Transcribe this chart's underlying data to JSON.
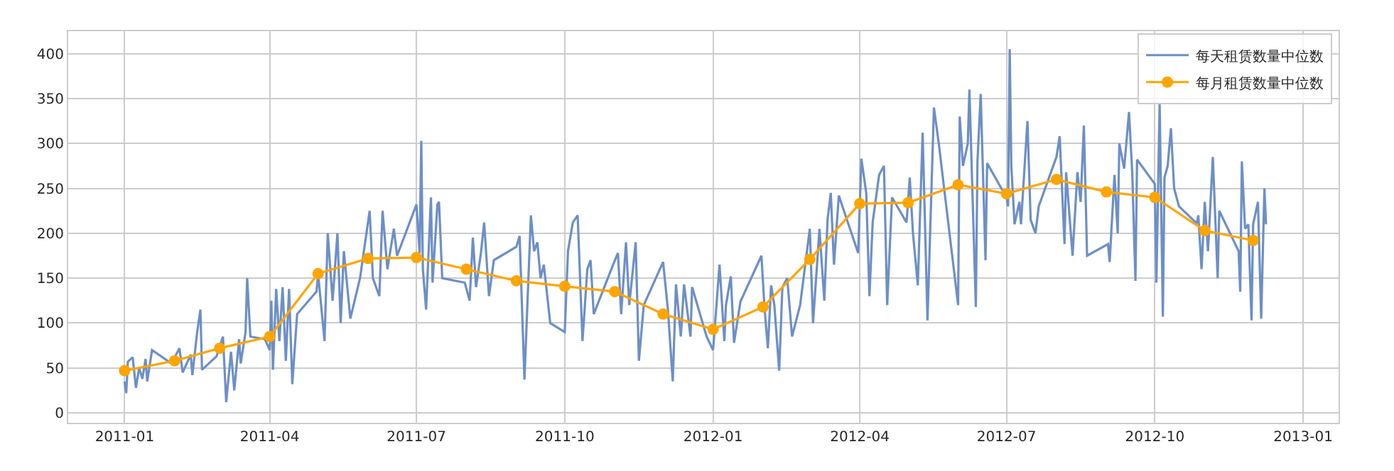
{
  "chart_data": {
    "type": "line",
    "legend": "top right",
    "grid": true,
    "line_style": "solid",
    "xlim": [
      "2010-11-27",
      "2013-01-23"
    ],
    "xticks": [
      "2011-01",
      "2011-04",
      "2011-07",
      "2011-10",
      "2012-01",
      "2012-04",
      "2012-07",
      "2012-10",
      "2013-01"
    ],
    "ylim": [
      -11,
      425
    ],
    "yticks": [
      0,
      50,
      100,
      150,
      200,
      250,
      300,
      350,
      400
    ],
    "series": [
      {
        "name": "每天租赁数量中位数",
        "color": "#6d8fc6",
        "marker": "none",
        "x": [
          "2011-01-01",
          "2011-01-02",
          "2011-01-03",
          "2011-01-06",
          "2011-01-08",
          "2011-01-10",
          "2011-01-12",
          "2011-01-14",
          "2011-01-15",
          "2011-01-18",
          "2011-01-30",
          "2011-02-04",
          "2011-02-06",
          "2011-02-11",
          "2011-02-12",
          "2011-02-15",
          "2011-02-17",
          "2011-02-18",
          "2011-02-27",
          "2011-03-03",
          "2011-03-05",
          "2011-03-08",
          "2011-03-10",
          "2011-03-13",
          "2011-03-14",
          "2011-03-17",
          "2011-03-18",
          "2011-03-20",
          "2011-03-29",
          "2011-04-01",
          "2011-04-02",
          "2011-04-03",
          "2011-04-05",
          "2011-04-07",
          "2011-04-09",
          "2011-04-11",
          "2011-04-13",
          "2011-04-15",
          "2011-04-18",
          "2011-04-30",
          "2011-05-01",
          "2011-05-05",
          "2011-05-07",
          "2011-05-10",
          "2011-05-13",
          "2011-05-15",
          "2011-05-17",
          "2011-05-21",
          "2011-05-27",
          "2011-06-02",
          "2011-06-04",
          "2011-06-08",
          "2011-06-10",
          "2011-06-13",
          "2011-06-17",
          "2011-06-19",
          "2011-07-01",
          "2011-07-03",
          "2011-07-04",
          "2011-07-05",
          "2011-07-07",
          "2011-07-10",
          "2011-07-11",
          "2011-07-14",
          "2011-07-15",
          "2011-07-17",
          "2011-07-31",
          "2011-08-03",
          "2011-08-05",
          "2011-08-07",
          "2011-08-10",
          "2011-08-12",
          "2011-08-15",
          "2011-08-18",
          "2011-09-01",
          "2011-09-03",
          "2011-09-06",
          "2011-09-10",
          "2011-09-12",
          "2011-09-14",
          "2011-09-16",
          "2011-09-18",
          "2011-09-22",
          "2011-10-01",
          "2011-10-03",
          "2011-10-06",
          "2011-10-09",
          "2011-10-12",
          "2011-10-15",
          "2011-10-17",
          "2011-10-19",
          "2011-10-31",
          "2011-11-03",
          "2011-11-05",
          "2011-11-08",
          "2011-11-10",
          "2011-11-14",
          "2011-11-16",
          "2011-11-19",
          "2011-12-01",
          "2011-12-04",
          "2011-12-07",
          "2011-12-09",
          "2011-12-12",
          "2011-12-14",
          "2011-12-18",
          "2011-12-19",
          "2011-12-28",
          "2012-01-01",
          "2012-01-05",
          "2012-01-08",
          "2012-01-09",
          "2012-01-12",
          "2012-01-14",
          "2012-01-18",
          "2012-01-31",
          "2012-02-02",
          "2012-02-04",
          "2012-02-06",
          "2012-02-08",
          "2012-02-11",
          "2012-02-13",
          "2012-02-16",
          "2012-02-19",
          "2012-02-24",
          "2012-03-01",
          "2012-03-03",
          "2012-03-07",
          "2012-03-10",
          "2012-03-12",
          "2012-03-14",
          "2012-03-16",
          "2012-03-19",
          "2012-03-31",
          "2012-04-02",
          "2012-04-05",
          "2012-04-07",
          "2012-04-09",
          "2012-04-13",
          "2012-04-16",
          "2012-04-18",
          "2012-04-21",
          "2012-04-30",
          "2012-05-02",
          "2012-05-04",
          "2012-05-07",
          "2012-05-10",
          "2012-05-13",
          "2012-05-17",
          "2012-05-20",
          "2012-06-01",
          "2012-06-02",
          "2012-06-04",
          "2012-06-07",
          "2012-06-08",
          "2012-06-12",
          "2012-06-13",
          "2012-06-15",
          "2012-06-18",
          "2012-06-19",
          "2012-07-01",
          "2012-07-02",
          "2012-07-03",
          "2012-07-04",
          "2012-07-06",
          "2012-07-09",
          "2012-07-10",
          "2012-07-14",
          "2012-07-16",
          "2012-07-19",
          "2012-07-21",
          "2012-08-01",
          "2012-08-03",
          "2012-08-06",
          "2012-08-07",
          "2012-08-11",
          "2012-08-14",
          "2012-08-16",
          "2012-08-18",
          "2012-08-20",
          "2012-09-02",
          "2012-09-03",
          "2012-09-06",
          "2012-09-08",
          "2012-09-09",
          "2012-09-12",
          "2012-09-15",
          "2012-09-17",
          "2012-09-19",
          "2012-09-20",
          "2012-10-01",
          "2012-10-02",
          "2012-10-04",
          "2012-10-06",
          "2012-10-07",
          "2012-10-09",
          "2012-10-11",
          "2012-10-13",
          "2012-10-16",
          "2012-10-27",
          "2012-10-28",
          "2012-10-30",
          "2012-11-01",
          "2012-11-03",
          "2012-11-06",
          "2012-11-09",
          "2012-11-10",
          "2012-11-22",
          "2012-11-23",
          "2012-11-24",
          "2012-11-26",
          "2012-11-28",
          "2012-11-30",
          "2012-12-01",
          "2012-12-04",
          "2012-12-06",
          "2012-12-08",
          "2012-12-09"
        ],
        "values": [
          35,
          22,
          57,
          62,
          28,
          50,
          38,
          60,
          35,
          70,
          55,
          72,
          45,
          65,
          42,
          90,
          115,
          48,
          63,
          85,
          12,
          68,
          25,
          82,
          55,
          90,
          150,
          85,
          82,
          70,
          125,
          48,
          138,
          80,
          140,
          58,
          138,
          32,
          110,
          135,
          155,
          80,
          200,
          125,
          200,
          100,
          180,
          105,
          150,
          225,
          150,
          130,
          225,
          160,
          205,
          175,
          232,
          178,
          303,
          160,
          115,
          240,
          145,
          232,
          235,
          150,
          145,
          125,
          195,
          140,
          178,
          212,
          130,
          170,
          185,
          197,
          37,
          220,
          180,
          190,
          150,
          165,
          100,
          90,
          180,
          212,
          220,
          80,
          160,
          170,
          110,
          165,
          178,
          110,
          190,
          120,
          190,
          58,
          120,
          168,
          115,
          35,
          143,
          85,
          143,
          85,
          140,
          85,
          70,
          165,
          80,
          120,
          152,
          78,
          124,
          175,
          115,
          72,
          142,
          120,
          47,
          140,
          150,
          85,
          120,
          205,
          100,
          205,
          125,
          215,
          245,
          165,
          242,
          178,
          283,
          245,
          130,
          212,
          265,
          275,
          120,
          240,
          212,
          262,
          200,
          142,
          312,
          103,
          340,
          300,
          120,
          330,
          275,
          300,
          360,
          118,
          280,
          355,
          170,
          278,
          240,
          230,
          405,
          275,
          210,
          235,
          210,
          325,
          215,
          200,
          230,
          285,
          308,
          188,
          268,
          175,
          268,
          235,
          320,
          175,
          188,
          168,
          265,
          200,
          300,
          272,
          335,
          268,
          147,
          282,
          255,
          145,
          345,
          107,
          262,
          275,
          317,
          250,
          230,
          211,
          220,
          160,
          235,
          180,
          285,
          150,
          225,
          180,
          135,
          280,
          205,
          210,
          103,
          210,
          235,
          105,
          250,
          210
        ]
      },
      {
        "name": "每月租赁数量中位数",
        "color": "#ffa500",
        "marker": "circle",
        "x": [
          "2011-01-01",
          "2011-02-01",
          "2011-03-01",
          "2011-04-01",
          "2011-05-01",
          "2011-06-01",
          "2011-07-01",
          "2011-08-01",
          "2011-09-01",
          "2011-10-01",
          "2011-11-01",
          "2011-12-01",
          "2012-01-01",
          "2012-02-01",
          "2012-03-01",
          "2012-04-01",
          "2012-05-01",
          "2012-06-01",
          "2012-07-01",
          "2012-08-01",
          "2012-09-01",
          "2012-10-01",
          "2012-11-01",
          "2012-12-01"
        ],
        "values": [
          47,
          58,
          72,
          85,
          155,
          172,
          173,
          160,
          147,
          141,
          135,
          110,
          93,
          118,
          171,
          233,
          234,
          254,
          244,
          260,
          246,
          240,
          203,
          192
        ]
      }
    ]
  }
}
